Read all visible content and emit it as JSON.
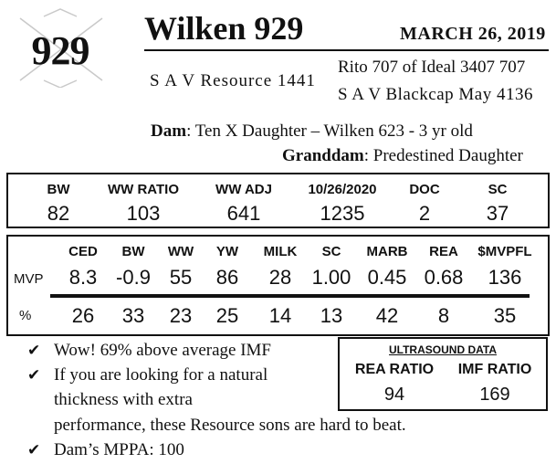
{
  "header": {
    "lot_number": "929",
    "bull_name": "Wilken 929",
    "sale_date": "MARCH  26, 2019"
  },
  "pedigree": {
    "sire": "S A V Resource 1441",
    "sire_sire": "Rito 707 of Ideal 3407 707",
    "sire_dam": "S A V Blackcap May 4136",
    "dam_label": "Dam",
    "dam_value": ": Ten X Daughter – Wilken 623 - 3 yr old",
    "granddam_label": "Granddam",
    "granddam_value": ": Predestined Daughter"
  },
  "weights": {
    "headers": [
      "BW",
      "WW RATIO",
      "WW ADJ",
      "10/26/2020",
      "DOC",
      "SC"
    ],
    "values": [
      "82",
      "103",
      "641",
      "1235",
      "2",
      "37"
    ]
  },
  "epds": {
    "row_label_mvp": "MVP",
    "row_label_pct": "%",
    "headers": [
      "CED",
      "BW",
      "WW",
      "YW",
      "MILK",
      "SC",
      "MARB",
      "REA",
      "$MVPFL"
    ],
    "values": [
      "8.3",
      "-0.9",
      "55",
      "86",
      "28",
      "1.00",
      "0.45",
      "0.68",
      "136"
    ],
    "percentiles": [
      "26",
      "33",
      "23",
      "25",
      "14",
      "13",
      "42",
      "8",
      "35"
    ]
  },
  "notes": {
    "check_glyph": "✔",
    "line1": "Wow! 69% above average IMF",
    "line2a": "If you are looking for a natural",
    "line2b": "thickness with extra",
    "line2c": "performance, these Resource sons are hard to beat.",
    "line3": "Dam’s MPPA: 100"
  },
  "ultrasound": {
    "title": "ULTRASOUND DATA",
    "headers": [
      "REA RATIO",
      "IMF RATIO"
    ],
    "values": [
      "94",
      "169"
    ]
  }
}
